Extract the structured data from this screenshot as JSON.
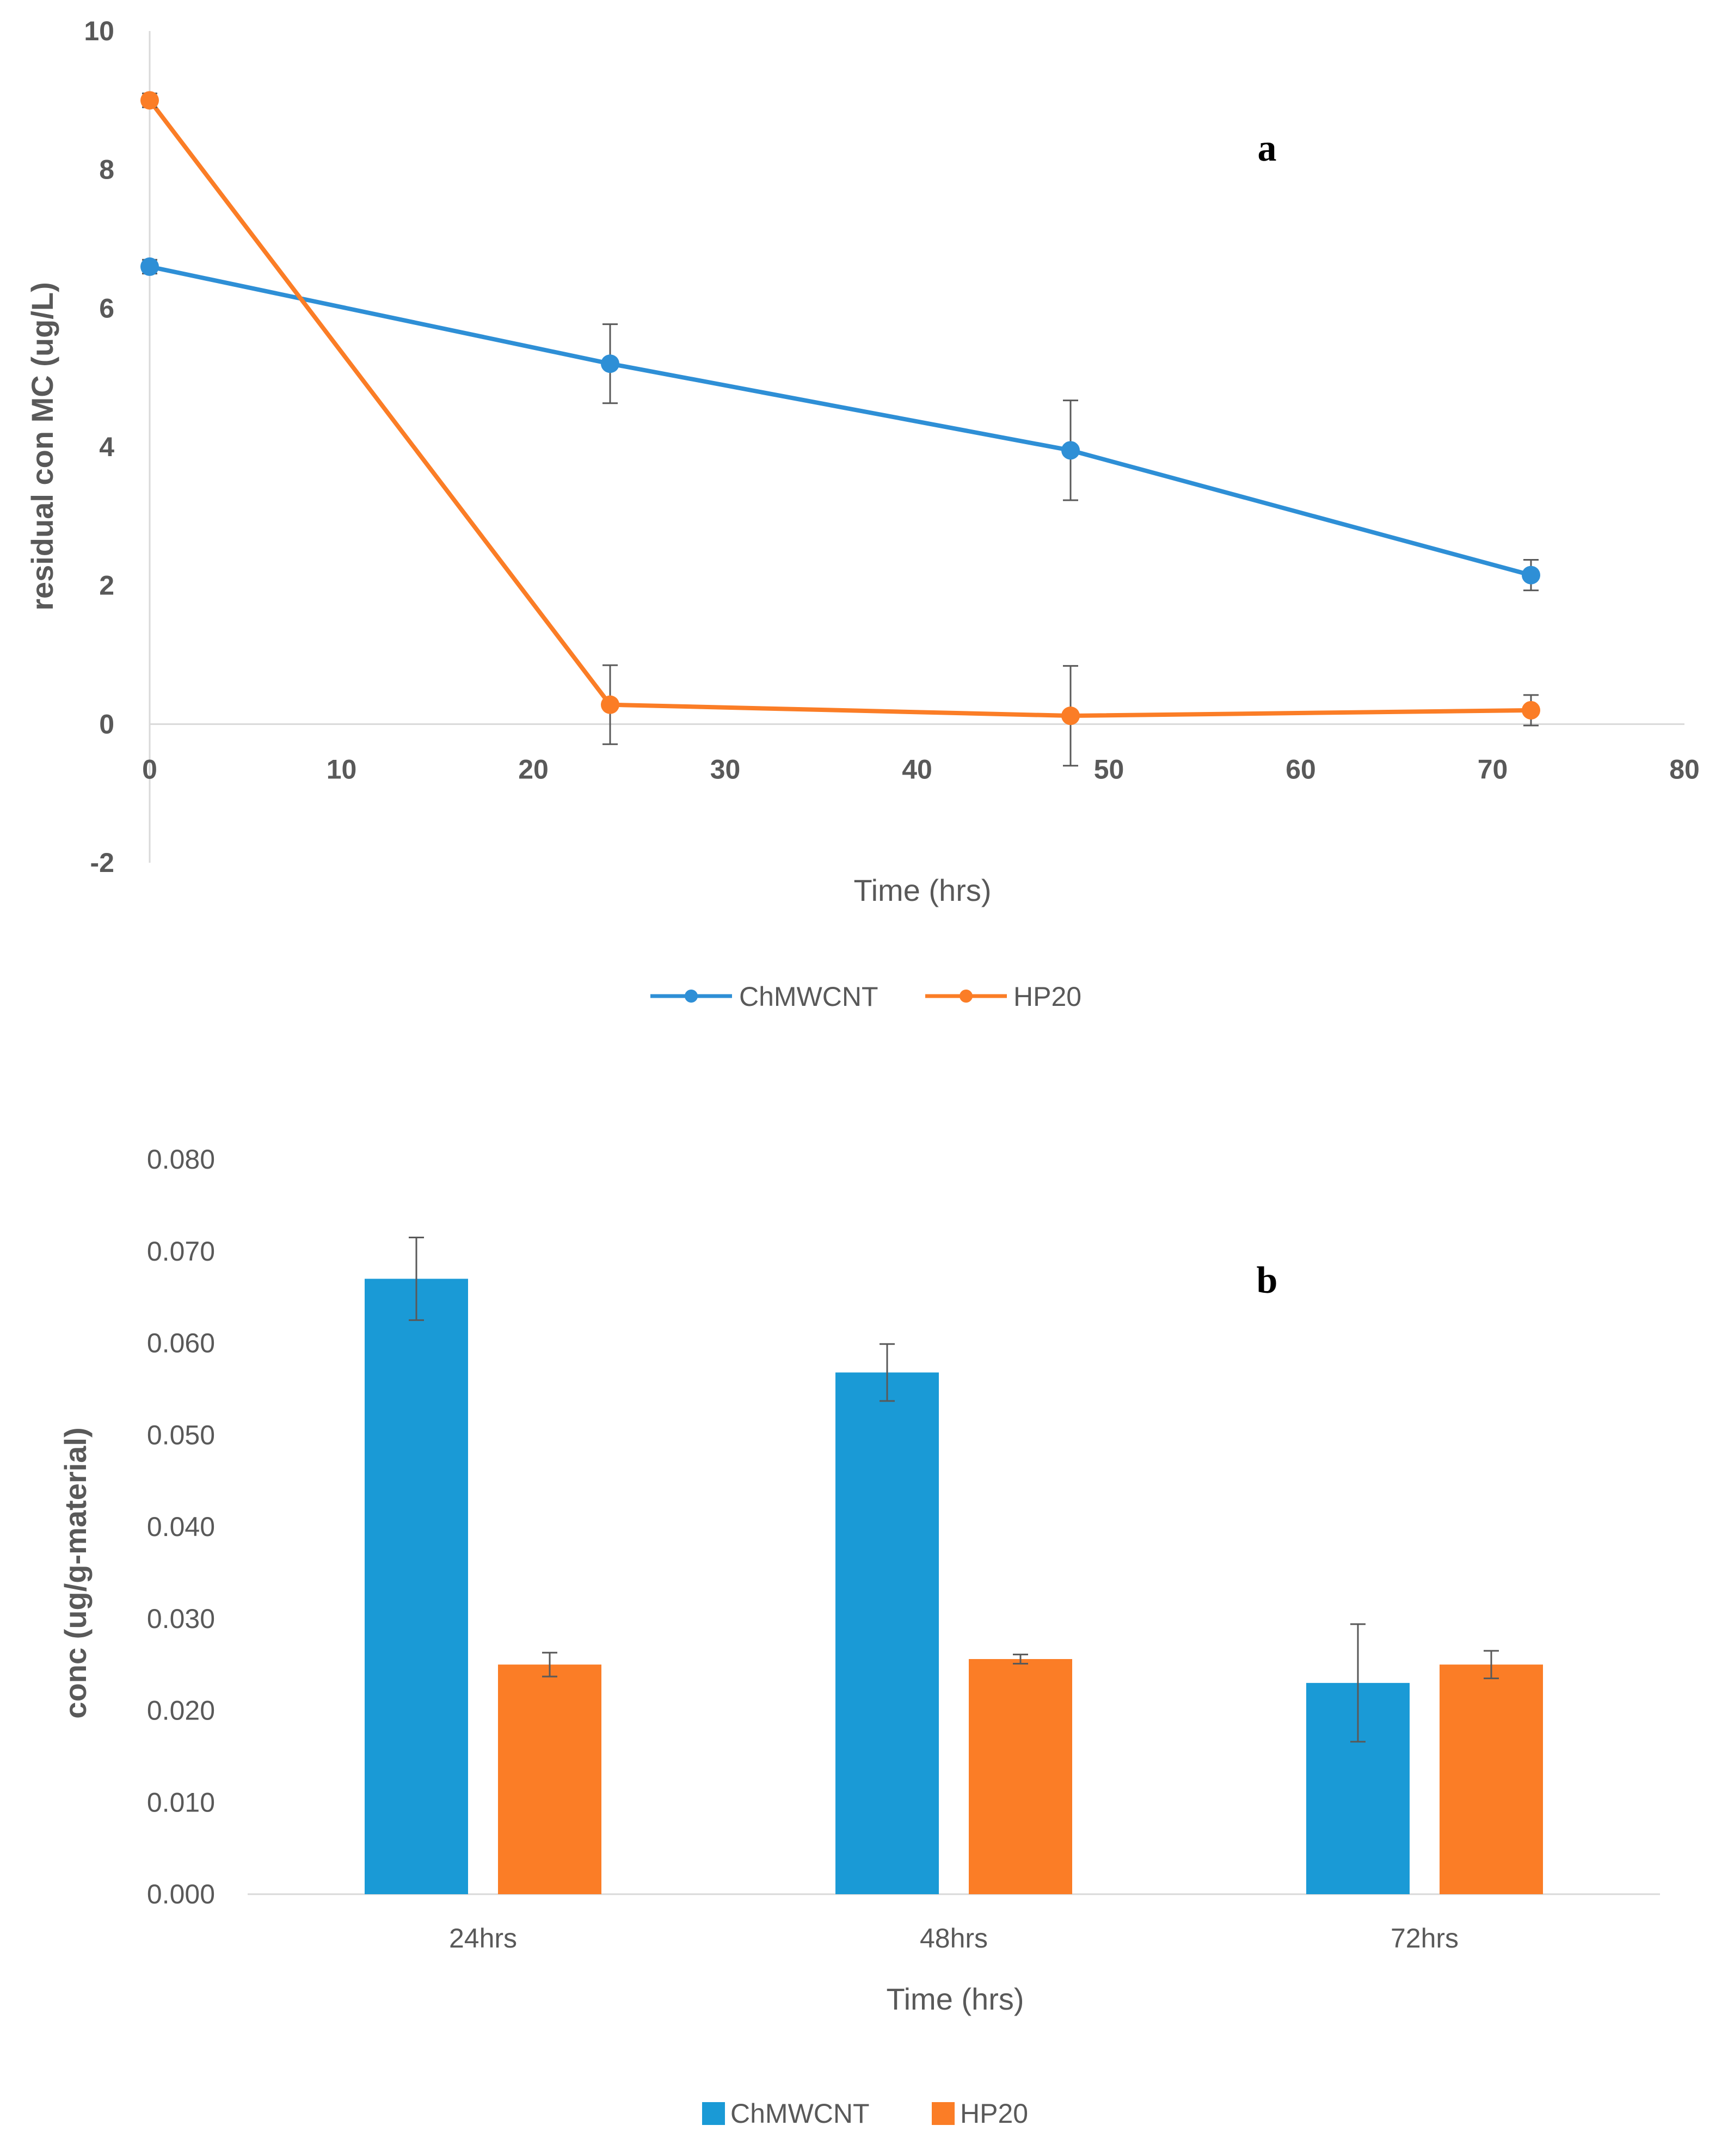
{
  "chart_data": [
    {
      "type": "line",
      "panel_label": "a",
      "xlabel": "Time (hrs)",
      "ylabel": "residual con MC (ug/L)",
      "xlim": [
        0,
        80
      ],
      "ylim": [
        -2,
        10
      ],
      "xticks": [
        0,
        10,
        20,
        30,
        40,
        50,
        60,
        70,
        80
      ],
      "yticks": [
        -2,
        0,
        2,
        4,
        6,
        8,
        10
      ],
      "x": [
        0,
        24,
        48,
        72
      ],
      "series": [
        {
          "name": "ChMWCNT",
          "color": "#2E8FD6",
          "values": [
            6.6,
            5.2,
            3.95,
            2.15
          ],
          "errors": [
            0.1,
            0.57,
            0.72,
            0.22
          ]
        },
        {
          "name": "HP20",
          "color": "#FB7D26",
          "values": [
            9.0,
            0.28,
            0.12,
            0.2
          ],
          "errors": [
            0.1,
            0.57,
            0.72,
            0.22
          ]
        }
      ],
      "legend_position": "bottom",
      "grid": false
    },
    {
      "type": "bar",
      "panel_label": "b",
      "xlabel": "Time (hrs)",
      "ylabel": "conc (ug/g-material)",
      "categories": [
        "24hrs",
        "48hrs",
        "72hrs"
      ],
      "ylim": [
        0,
        0.08
      ],
      "yticks": [
        "0.000",
        "0.010",
        "0.020",
        "0.030",
        "0.040",
        "0.050",
        "0.060",
        "0.070",
        "0.080"
      ],
      "series": [
        {
          "name": "ChMWCNT",
          "color": "#1A9AD6",
          "values": [
            0.067,
            0.0568,
            0.023
          ],
          "errors": [
            0.0045,
            0.0031,
            0.0064
          ]
        },
        {
          "name": "HP20",
          "color": "#FB7D26",
          "values": [
            0.025,
            0.0256,
            0.025
          ],
          "errors": [
            0.0013,
            0.0005,
            0.0015
          ]
        }
      ],
      "legend_position": "bottom",
      "grid": false
    }
  ]
}
